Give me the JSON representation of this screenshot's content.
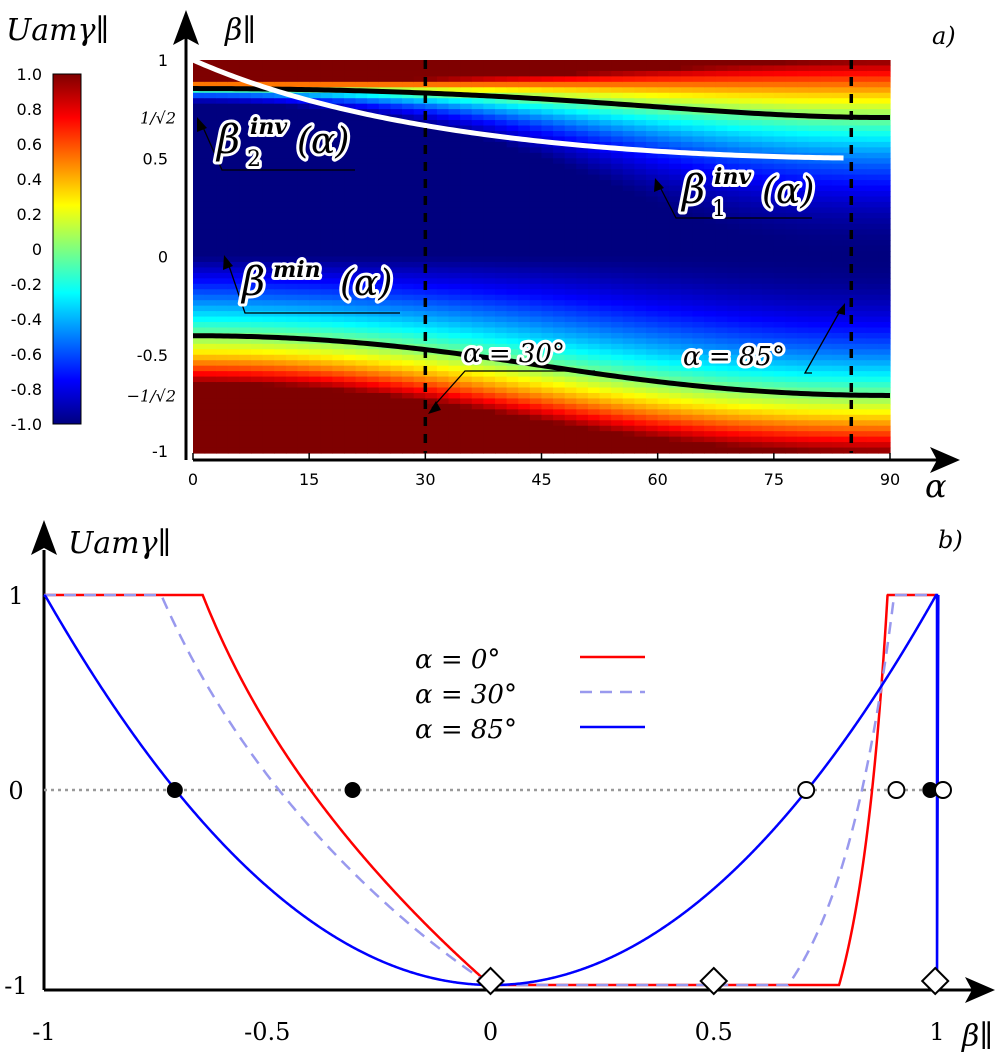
{
  "chart_data": [
    {
      "panel": "a)",
      "type": "heatmap",
      "title": "",
      "xlabel": "α",
      "ylabel": "β∥",
      "xlim": [
        0,
        90
      ],
      "ylim": [
        -1,
        1
      ],
      "x_ticks": [
        "0",
        "15",
        "30",
        "45",
        "60",
        "75",
        "90"
      ],
      "y_ticks": [
        "-1",
        "-0.5",
        "0",
        "0.5",
        "1"
      ],
      "y_special_ticks": [
        "1/√2",
        "−1/√2"
      ],
      "colorbar": {
        "label": "Uamγ∥",
        "range": [
          -1.0,
          1.0
        ],
        "ticks": [
          "1.0",
          "0.8",
          "0.6",
          "0.4",
          "0.2",
          "0",
          "-0.2",
          "-0.4",
          "-0.6",
          "-0.8",
          "-1.0"
        ],
        "colors": [
          "#00007f",
          "#0000ff",
          "#007fff",
          "#00ffff",
          "#7fff7f",
          "#ffff00",
          "#ff7f00",
          "#ff0000",
          "#7f0000"
        ]
      },
      "curves": [
        {
          "name": "β1inv(α)",
          "label_main": "β",
          "label_sup": "inv",
          "label_sub": "1",
          "label_arg": "(α)",
          "color": "#000000"
        },
        {
          "name": "β2inv(α)",
          "label_main": "β",
          "label_sup": "inv",
          "label_sub": "2",
          "label_arg": "(α)",
          "color": "#000000"
        },
        {
          "name": "βmin(α)",
          "label_main": "β",
          "label_sup": "min",
          "label_arg": "(α)",
          "color": "#ffffff"
        }
      ],
      "vertical_lines": [
        {
          "alpha": 30,
          "label": "α = 30°"
        },
        {
          "alpha": 85,
          "label": "α = 85°"
        }
      ]
    },
    {
      "panel": "b)",
      "type": "line",
      "title": "",
      "xlabel": "β∥",
      "ylabel": "Uamγ∥",
      "xlim": [
        -1,
        1
      ],
      "ylim": [
        -1,
        1
      ],
      "x_ticks": [
        "-1",
        "-0.5",
        "0",
        "0.5",
        "1"
      ],
      "y_ticks": [
        "1",
        "0",
        "-1"
      ],
      "legend_position": "top-center",
      "series": [
        {
          "name": "α = 0°",
          "alpha": 0,
          "color": "#ff0000",
          "dash": "solid"
        },
        {
          "name": "α = 30°",
          "alpha": 30,
          "color": "#9999ee",
          "dash": "dashed"
        },
        {
          "name": "α = 85°",
          "alpha": 85,
          "color": "#0000ff",
          "dash": "solid"
        }
      ],
      "zero_crossings_filled": [
        -0.707,
        -0.309,
        0.985
      ],
      "zero_crossings_open": [
        0.707,
        0.909,
        1.0
      ],
      "minima": [
        {
          "x": 0,
          "y": -1
        },
        {
          "x": 0.5,
          "y": -1
        },
        {
          "x": 0.996,
          "y": -1
        }
      ]
    }
  ]
}
